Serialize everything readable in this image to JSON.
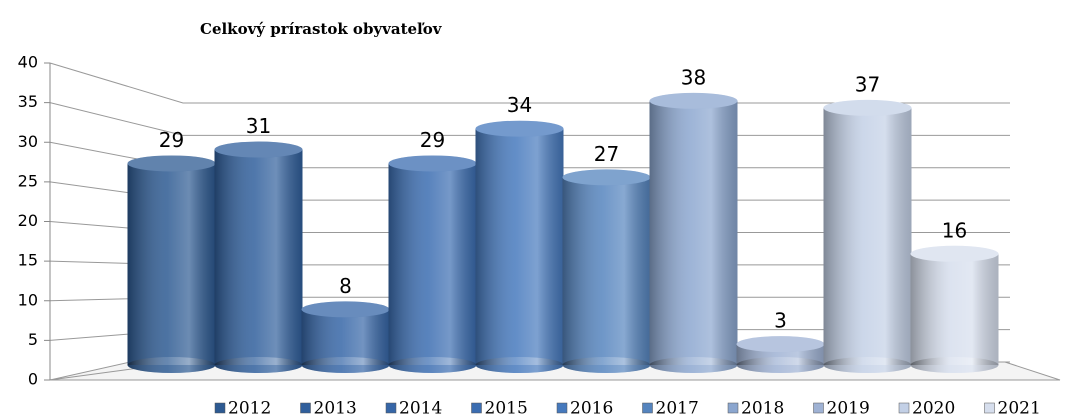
{
  "chart_data": {
    "type": "bar",
    "title": "Celkový prírastok obyvateľov",
    "categories": [
      "2012",
      "2013",
      "2014",
      "2015",
      "2016",
      "2017",
      "2018",
      "2019",
      "2020",
      "2021"
    ],
    "values": [
      29,
      31,
      8,
      29,
      34,
      27,
      38,
      3,
      37,
      16
    ],
    "colors": [
      "#2d5a92",
      "#305f9c",
      "#3666a7",
      "#3b6db1",
      "#4679bd",
      "#5584be",
      "#8ba6cf",
      "#9fb2d4",
      "#c3d0e6",
      "#d6deed"
    ],
    "ylim": [
      0,
      40
    ],
    "yticks": [
      0,
      5,
      10,
      15,
      20,
      25,
      30,
      35,
      40
    ],
    "grid": true,
    "legend": "bottom"
  }
}
